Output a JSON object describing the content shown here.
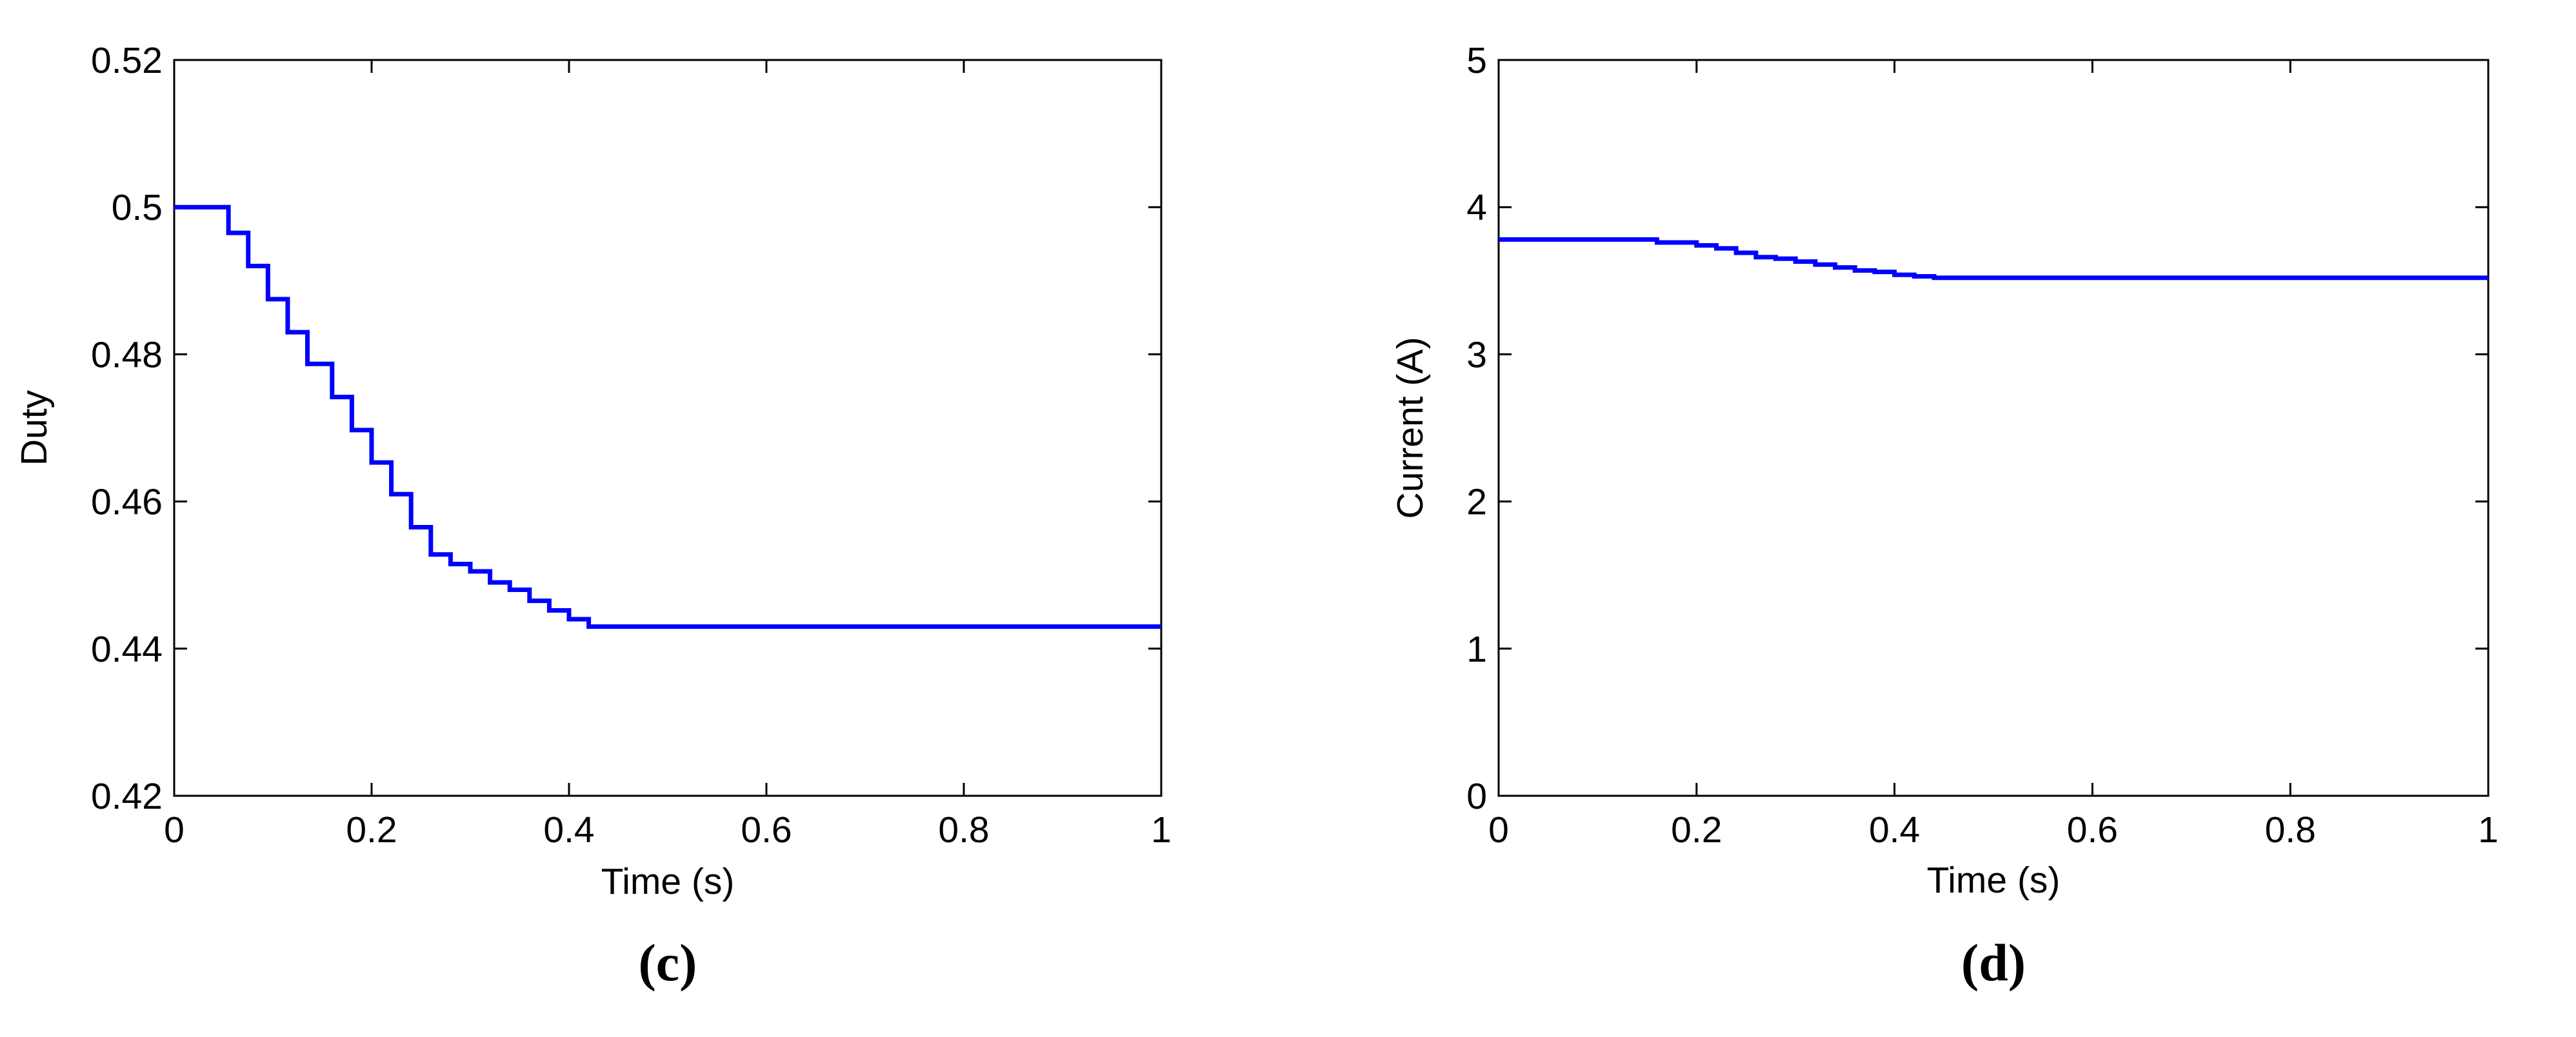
{
  "chart_data": [
    {
      "type": "line",
      "title": "",
      "caption": "(c)",
      "xlabel": "Time (s)",
      "ylabel": "Duty",
      "xlim": [
        0,
        1
      ],
      "ylim": [
        0.42,
        0.52
      ],
      "xticks": [
        0,
        0.2,
        0.4,
        0.6,
        0.8,
        1
      ],
      "xtick_labels": [
        "0",
        "0.2",
        "0.4",
        "0.6",
        "0.8",
        "1"
      ],
      "yticks": [
        0.42,
        0.44,
        0.46,
        0.48,
        0.5,
        0.52
      ],
      "ytick_labels": [
        "0.42",
        "0.44",
        "0.46",
        "0.48",
        "0.5",
        "0.52"
      ],
      "grid": false,
      "line_color": "#0000ff",
      "step": true,
      "series": [
        {
          "x": [
            0,
            0.055,
            0.075,
            0.095,
            0.115,
            0.135,
            0.16,
            0.18,
            0.2,
            0.22,
            0.24,
            0.26,
            0.28,
            0.3,
            0.32,
            0.34,
            0.36,
            0.38,
            0.4,
            0.42,
            1.0
          ],
          "y": [
            0.5,
            0.4965,
            0.492,
            0.4875,
            0.483,
            0.4787,
            0.4742,
            0.4697,
            0.4653,
            0.461,
            0.4565,
            0.4528,
            0.4515,
            0.4505,
            0.449,
            0.448,
            0.4465,
            0.4452,
            0.444,
            0.443,
            0.443
          ]
        }
      ]
    },
    {
      "type": "line",
      "title": "",
      "caption": "(d)",
      "xlabel": "Time (s)",
      "ylabel": "Current (A)",
      "xlim": [
        0,
        1
      ],
      "ylim": [
        0,
        5
      ],
      "xticks": [
        0,
        0.2,
        0.4,
        0.6,
        0.8,
        1
      ],
      "xtick_labels": [
        "0",
        "0.2",
        "0.4",
        "0.6",
        "0.8",
        "1"
      ],
      "yticks": [
        0,
        1,
        2,
        3,
        4,
        5
      ],
      "ytick_labels": [
        "0",
        "1",
        "2",
        "3",
        "4",
        "5"
      ],
      "grid": false,
      "line_color": "#0000ff",
      "step": true,
      "series": [
        {
          "x": [
            0,
            0.16,
            0.2,
            0.22,
            0.24,
            0.26,
            0.28,
            0.3,
            0.32,
            0.34,
            0.36,
            0.38,
            0.4,
            0.42,
            0.44,
            1.0
          ],
          "y": [
            3.78,
            3.76,
            3.74,
            3.72,
            3.69,
            3.66,
            3.65,
            3.63,
            3.61,
            3.59,
            3.57,
            3.56,
            3.54,
            3.53,
            3.52,
            3.52
          ]
        }
      ]
    }
  ]
}
